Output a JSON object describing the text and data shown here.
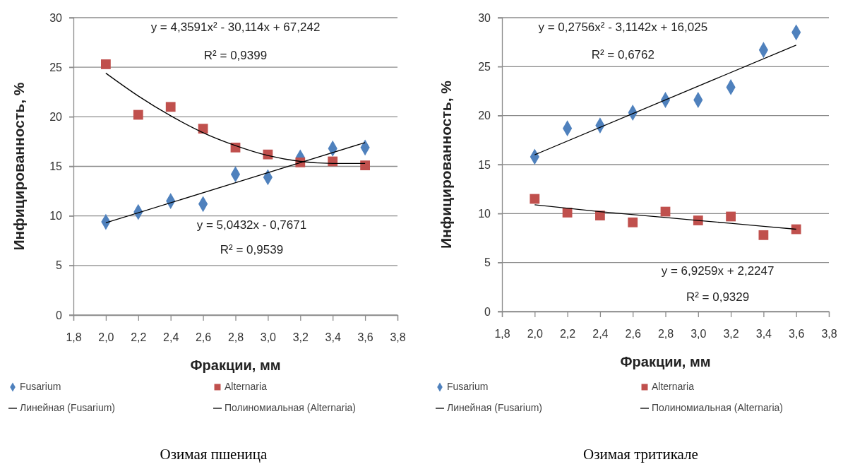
{
  "chart_data": [
    {
      "type": "scatter",
      "title": "Озимая пшеница",
      "xlabel": "Фракции, мм",
      "ylabel": "Инфицированность, %",
      "xlim": [
        1.8,
        3.8
      ],
      "xticks": [
        {
          "value": 1.8,
          "label": "1,8"
        },
        {
          "value": 2.0,
          "label": "2,0"
        },
        {
          "value": 2.2,
          "label": "2,2"
        },
        {
          "value": 2.4,
          "label": "2,4"
        },
        {
          "value": 2.6,
          "label": "2,6"
        },
        {
          "value": 2.8,
          "label": "2,8"
        },
        {
          "value": 3.0,
          "label": "3,0"
        },
        {
          "value": 3.2,
          "label": "3,2"
        },
        {
          "value": 3.4,
          "label": "3,4"
        },
        {
          "value": 3.6,
          "label": "3,6"
        },
        {
          "value": 3.8,
          "label": "3,8"
        }
      ],
      "ylim": [
        0,
        30
      ],
      "yticks": [
        0,
        5,
        10,
        15,
        20,
        25,
        30
      ],
      "grid": "y",
      "legend": "bottom",
      "x": [
        2.0,
        2.2,
        2.4,
        2.6,
        2.8,
        3.0,
        3.2,
        3.4,
        3.6
      ],
      "series": [
        {
          "name": "Fusarium",
          "marker": "diamond",
          "color": "#4f81bd",
          "values": [
            9.4,
            10.4,
            11.5,
            11.2,
            14.2,
            13.9,
            15.9,
            16.8,
            16.9
          ]
        },
        {
          "name": "Alternaria",
          "marker": "square",
          "color": "#c0504d",
          "values": [
            25.3,
            20.2,
            21.0,
            18.8,
            16.9,
            16.2,
            15.4,
            15.5,
            15.1
          ]
        },
        {
          "name": "Линейная (Fusarium)",
          "type": "line",
          "marker": "none",
          "color": "#000000",
          "x": [
            2.0,
            3.6
          ],
          "values": [
            9.3,
            17.4
          ]
        },
        {
          "name": "Полиномиальная (Alternaria)",
          "type": "line",
          "marker": "none",
          "color": "#000000",
          "x": [
            2.0,
            2.2,
            2.4,
            2.6,
            2.8,
            3.0,
            3.2,
            3.4,
            3.6
          ],
          "values": [
            24.4,
            22.1,
            20.1,
            18.4,
            17.1,
            16.1,
            15.5,
            15.3,
            15.3
          ]
        }
      ],
      "annotations": [
        "y = 4,3591x² - 30,114x + 67,242",
        "R² = 0,9399",
        "y = 5,0432x - 0,7671",
        "R² = 0,9539"
      ]
    },
    {
      "type": "scatter",
      "title": "Озимая тритикале",
      "xlabel": "Фракции, мм",
      "ylabel": "Инфицированность, %",
      "xlim": [
        1.8,
        3.8
      ],
      "xticks": [
        {
          "value": 1.8,
          "label": "1,8"
        },
        {
          "value": 2.0,
          "label": "2,0"
        },
        {
          "value": 2.2,
          "label": "2,2"
        },
        {
          "value": 2.4,
          "label": "2,4"
        },
        {
          "value": 2.6,
          "label": "2,6"
        },
        {
          "value": 2.8,
          "label": "2,8"
        },
        {
          "value": 3.0,
          "label": "3,0"
        },
        {
          "value": 3.2,
          "label": "3,2"
        },
        {
          "value": 3.4,
          "label": "3,4"
        },
        {
          "value": 3.6,
          "label": "3,6"
        },
        {
          "value": 3.8,
          "label": "3,8"
        }
      ],
      "ylim": [
        0,
        30
      ],
      "yticks": [
        0,
        5,
        10,
        15,
        20,
        25,
        30
      ],
      "grid": "y",
      "legend": "bottom",
      "x": [
        2.0,
        2.2,
        2.4,
        2.6,
        2.8,
        3.0,
        3.2,
        3.4,
        3.6
      ],
      "series": [
        {
          "name": "Fusarium",
          "marker": "diamond",
          "color": "#4f81bd",
          "values": [
            15.8,
            18.7,
            19.0,
            20.3,
            21.6,
            21.6,
            22.9,
            26.7,
            28.5
          ]
        },
        {
          "name": "Alternaria",
          "marker": "square",
          "color": "#c0504d",
          "values": [
            11.5,
            10.1,
            9.8,
            9.1,
            10.2,
            9.3,
            9.7,
            7.8,
            8.4
          ]
        },
        {
          "name": "Линейная (Fusarium)",
          "type": "line",
          "marker": "none",
          "color": "#000000",
          "x": [
            2.0,
            3.6
          ],
          "values": [
            16.0,
            27.2
          ]
        },
        {
          "name": "Полиномиальная (Alternaria)",
          "type": "line",
          "marker": "none",
          "color": "#000000",
          "x": [
            2.0,
            2.4,
            2.8,
            3.2,
            3.6
          ],
          "values": [
            10.9,
            10.2,
            9.6,
            9.0,
            8.4
          ]
        }
      ],
      "annotations": [
        "y = 0,2756x² - 3,1142x + 16,025",
        "R² = 0,6762",
        "y = 6,9259x + 2,2247",
        "R² = 0,9329"
      ]
    }
  ]
}
